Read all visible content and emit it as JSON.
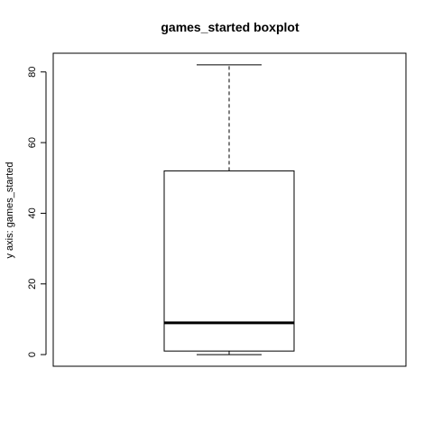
{
  "chart_data": {
    "type": "box",
    "title": "games_started boxplot",
    "xlabel": "",
    "ylabel": "y axis: games_started",
    "ylim": [
      -3.3,
      85.3
    ],
    "yticks": [
      0,
      20,
      40,
      60,
      80
    ],
    "grid": false,
    "box": {
      "min": 0,
      "q1": 1,
      "median": 9,
      "q3": 52,
      "max": 82
    }
  }
}
